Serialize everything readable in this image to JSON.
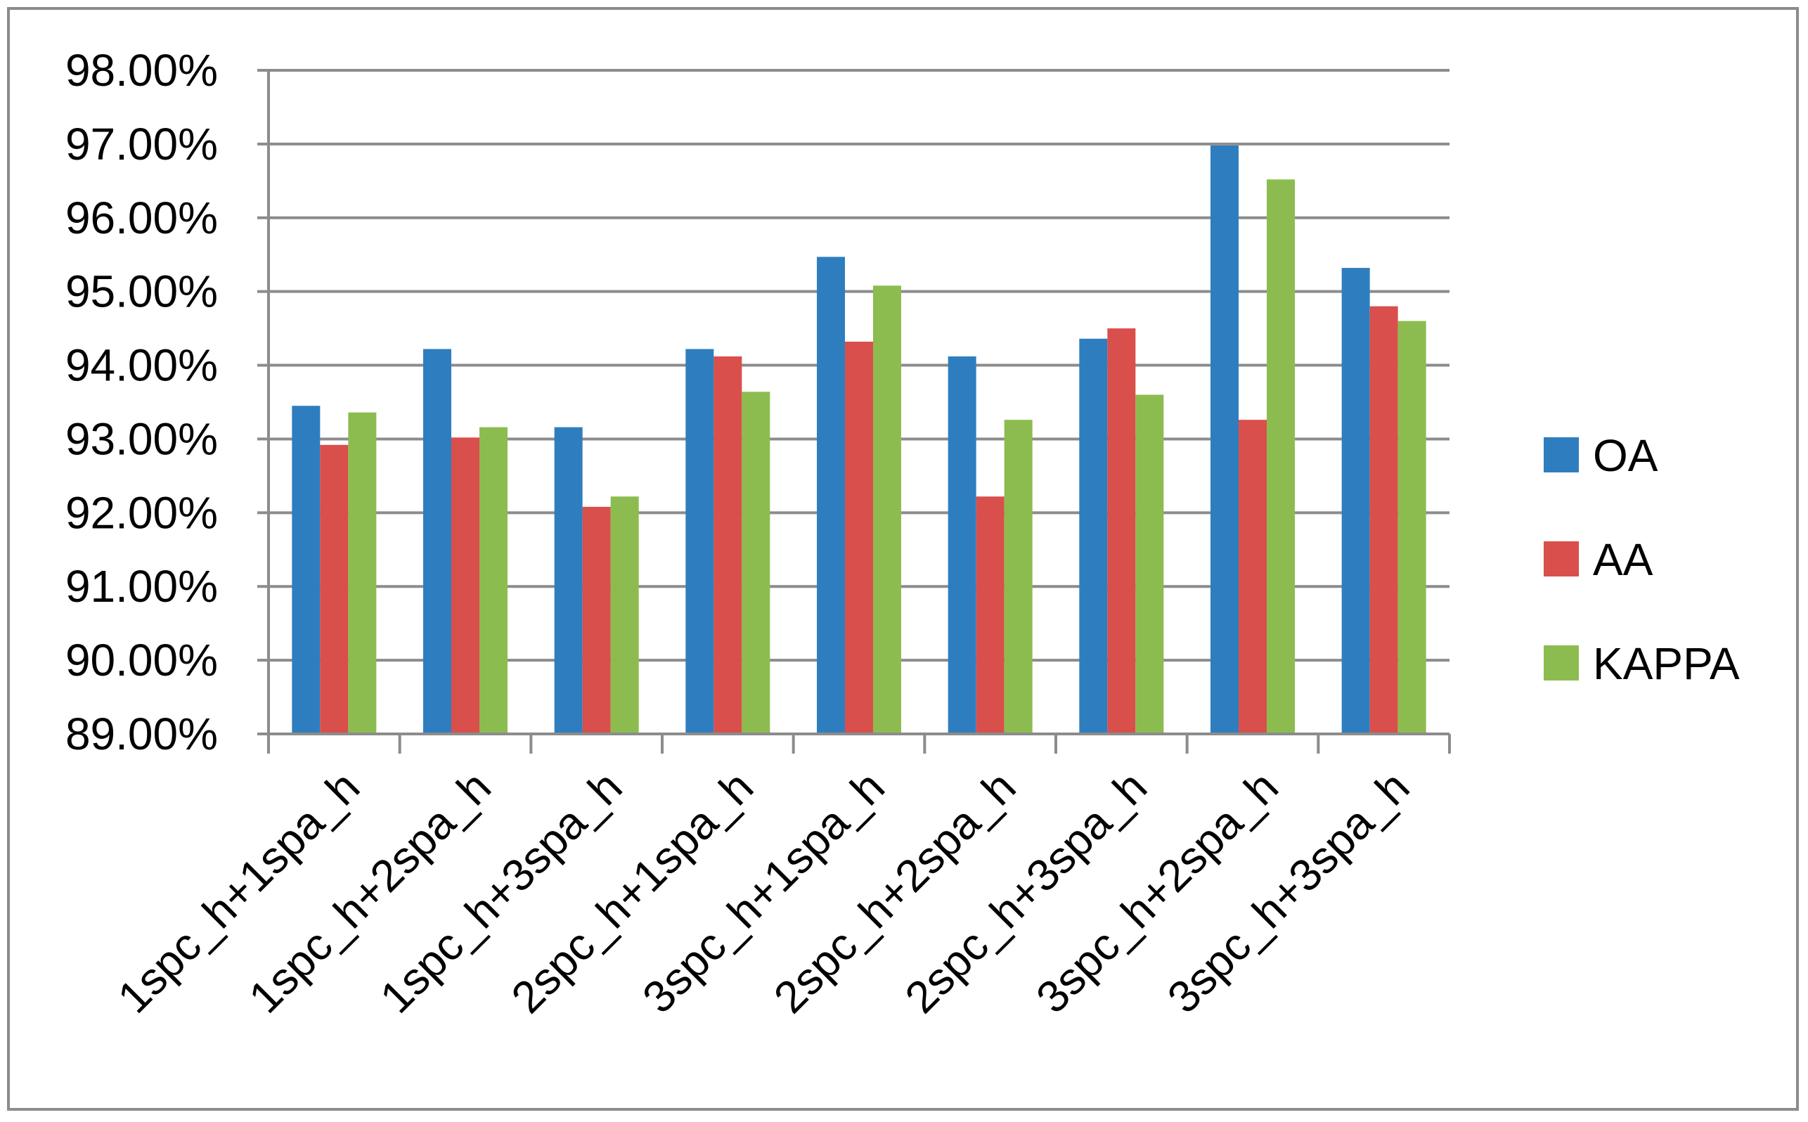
{
  "chart_data": {
    "type": "bar",
    "title": "",
    "xlabel": "",
    "ylabel": "",
    "categories": [
      "1spc_h+1spa_h",
      "1spc_h+2spa_h",
      "1spc_h+3spa_h",
      "2spc_h+1spa_h",
      "3spc_h+1spa_h",
      "2spc_h+2spa_h",
      "2spc_h+3spa_h",
      "3spc_h+2spa_h",
      "3spc_h+3spa_h"
    ],
    "series": [
      {
        "name": "OA",
        "color": "#2e7ebf",
        "values": [
          93.45,
          94.22,
          93.16,
          94.22,
          95.47,
          94.12,
          94.36,
          96.98,
          95.32
        ]
      },
      {
        "name": "AA",
        "color": "#d94f4c",
        "values": [
          92.92,
          93.02,
          92.08,
          94.12,
          94.32,
          92.22,
          94.5,
          93.26,
          94.8
        ]
      },
      {
        "name": "KAPPA",
        "color": "#8cbc4f",
        "values": [
          93.36,
          93.16,
          92.22,
          93.64,
          95.08,
          93.26,
          93.6,
          96.52,
          94.6
        ]
      }
    ],
    "ylim": [
      89.0,
      98.0
    ],
    "yticks": [
      89.0,
      90.0,
      91.0,
      92.0,
      93.0,
      94.0,
      95.0,
      96.0,
      97.0,
      98.0
    ],
    "ytick_labels": [
      "89.00%",
      "90.00%",
      "91.00%",
      "92.00%",
      "93.00%",
      "94.00%",
      "95.00%",
      "96.00%",
      "97.00%",
      "98.00%"
    ],
    "grid": true,
    "legend_position": "right",
    "gridline_color": "#8c8c8c",
    "axis_color": "#8c8c8c"
  }
}
